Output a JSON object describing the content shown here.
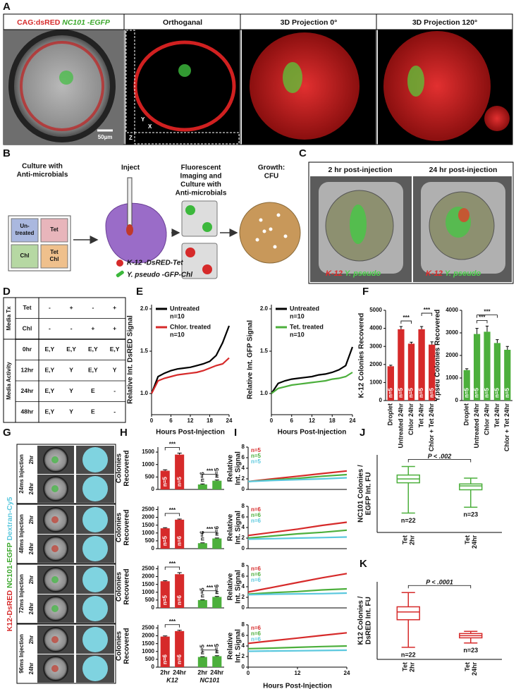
{
  "panel_labels": [
    "A",
    "B",
    "C",
    "D",
    "E",
    "F",
    "G",
    "H",
    "I",
    "J",
    "K"
  ],
  "panel_a": {
    "title_red": "CAG:dsRED",
    "title_green": "NC101 -EGFP",
    "titles": [
      "Orthoganal",
      "3D Projection 0°",
      "3D Projection 120°"
    ],
    "scale_bar": "50µm",
    "axes": [
      "Y",
      "X",
      "Z"
    ]
  },
  "panel_b": {
    "steps": [
      [
        "Culture with",
        "Anti-microbials"
      ],
      [
        "Inject"
      ],
      [
        "Fluorescent",
        "Imaging and",
        "Culture with",
        "Anti-microbials"
      ],
      [
        "Growth:",
        "CFU"
      ]
    ],
    "boxes": [
      [
        "Un-",
        "treated"
      ],
      [
        "Tet"
      ],
      [
        "Chl"
      ],
      [
        "Tet",
        "Chl"
      ]
    ],
    "legend": [
      "K-12 -DsRED-Tet",
      "Y. pseudo -GFP-Chl"
    ]
  },
  "panel_c": {
    "headers": [
      "2 hr post-injection",
      "24 hr post-injection"
    ],
    "overlay_red": "K-12",
    "overlay_green": "Y. pseudo"
  },
  "panel_d": {
    "group_labels": [
      "Media Tx",
      "Media Activity"
    ],
    "rows": [
      [
        "Tet",
        "-",
        "+",
        "-",
        "+"
      ],
      [
        "Chl",
        "-",
        "-",
        "+",
        "+"
      ],
      [
        "0hr",
        "E,Y",
        "E,Y",
        "E,Y",
        "E,Y"
      ],
      [
        "12hr",
        "E,Y",
        "Y",
        "E,Y",
        "Y"
      ],
      [
        "24hr",
        "E,Y",
        "Y",
        "E",
        "-"
      ],
      [
        "48hr",
        "E,Y",
        "Y",
        "E",
        "-"
      ]
    ]
  },
  "panel_g": {
    "stain_labels": [
      "K12-DsRED",
      "NC101-EGFP",
      "Dextran-Cy5"
    ],
    "injections": [
      "24ms Injection",
      "48ms Injection",
      "72ms Injection",
      "96ms Injection"
    ],
    "times": [
      "2hr",
      "24hr"
    ]
  },
  "chart_data": [
    {
      "type": "line",
      "y_label": [
        "Relative Int. DsRED Signal"
      ],
      "x_label": "Hours Post-Injection",
      "x": [
        0,
        2,
        4,
        6,
        8,
        10,
        12,
        14,
        16,
        18,
        20,
        22,
        24
      ],
      "xlim": [
        0,
        24
      ],
      "xticks": [
        0,
        6,
        12,
        18,
        24
      ],
      "ylim": [
        0.75,
        2.05
      ],
      "yticks": [
        {
          "value": 1,
          "label": "1.0"
        },
        1.5,
        {
          "value": 2,
          "label": "2.0"
        }
      ],
      "series": [
        {
          "name": "Untreated",
          "n_label": "n=10",
          "color": "#000000",
          "values": [
            1.0,
            1.2,
            1.24,
            1.27,
            1.29,
            1.3,
            1.31,
            1.33,
            1.35,
            1.38,
            1.45,
            1.6,
            1.8
          ]
        },
        {
          "name": "Chlor. treated",
          "n_label": "n=10",
          "color": "#d62a2a",
          "values": [
            1.0,
            1.15,
            1.18,
            1.2,
            1.22,
            1.23,
            1.24,
            1.25,
            1.27,
            1.3,
            1.33,
            1.35,
            1.42
          ]
        }
      ]
    },
    {
      "type": "line",
      "y_label": [
        "Relative Int. GFP Signal"
      ],
      "x_label": "Hours Post-Injection",
      "x": [
        0,
        2,
        4,
        6,
        8,
        10,
        12,
        14,
        16,
        18,
        20,
        22,
        24
      ],
      "xlim": [
        0,
        24
      ],
      "xticks": [
        0,
        6,
        12,
        18,
        24
      ],
      "ylim": [
        0.75,
        2.05
      ],
      "yticks": [
        {
          "value": 1,
          "label": "1.0"
        },
        1.5,
        {
          "value": 2,
          "label": "2.0"
        }
      ],
      "series": [
        {
          "name": "Untreated",
          "n_label": "n=10",
          "color": "#000000",
          "values": [
            1.0,
            1.12,
            1.15,
            1.17,
            1.18,
            1.19,
            1.2,
            1.22,
            1.23,
            1.25,
            1.28,
            1.33,
            1.55
          ]
        },
        {
          "name": "Tet. treated",
          "n_label": "n=10",
          "color": "#4caf3c",
          "values": [
            1.0,
            1.06,
            1.08,
            1.1,
            1.11,
            1.12,
            1.13,
            1.14,
            1.15,
            1.17,
            1.18,
            1.2,
            1.25
          ]
        }
      ]
    },
    {
      "type": "bar",
      "y_label": [
        "K-12 Colonies Recovered"
      ],
      "categories": [
        "Droplet",
        "Untreated 24hr",
        "Chlor 24hr",
        "Tet 24hr",
        "Chlor + Tet 24hr"
      ],
      "values": [
        1900,
        3950,
        3150,
        3950,
        3100
      ],
      "errors": [
        60,
        150,
        80,
        150,
        150
      ],
      "n_labels": [
        "n=5",
        "n=5",
        "n=5",
        "n=5",
        "n=5"
      ],
      "color": "#d62a2a",
      "ylim": [
        0,
        5000
      ],
      "yticks": [
        0,
        1000,
        2000,
        3000,
        4000,
        5000
      ],
      "significance": [
        {
          "label": "***",
          "pair": [
            "Untreated 24hr",
            "Chlor 24hr"
          ]
        },
        {
          "label": "***",
          "pair": [
            "Tet 24hr",
            "Chlor + Tet 24hr"
          ]
        }
      ]
    },
    {
      "type": "bar",
      "y_label": [
        "Y.pseu Colonies Recovered"
      ],
      "categories": [
        "Droplet",
        "Untreated 24hr",
        "Chlor 24hr",
        "Tet 24hr",
        "Chlor + Tet 24hr"
      ],
      "values": [
        1350,
        2950,
        3050,
        2550,
        2250
      ],
      "errors": [
        60,
        250,
        250,
        150,
        150
      ],
      "n_labels": [
        "n=5",
        "n=5",
        "n=5",
        "n=5",
        "n=5"
      ],
      "color": "#4caf3c",
      "ylim": [
        0,
        4000
      ],
      "yticks": [
        0,
        1000,
        2000,
        3000,
        4000
      ],
      "significance": [
        {
          "label": "***",
          "pair": [
            "Untreated 24hr",
            "Chlor 24hr"
          ]
        },
        {
          "label": "***",
          "pair": [
            "Untreated 24hr",
            "Tet 24hr"
          ]
        }
      ]
    },
    {
      "type": "bar",
      "y_label": [
        "Colonies",
        "Recovered"
      ],
      "ylim": [
        0,
        1700
      ],
      "yticks": [
        0,
        500,
        1000,
        1500
      ],
      "groups": [
        {
          "color": "#d62a2a",
          "values": [
            750,
            1400
          ],
          "errors": [
            40,
            60
          ],
          "n_labels": [
            "n=5",
            "n=5"
          ],
          "significance": "***"
        },
        {
          "color": "#4caf3c",
          "values": [
            200,
            350
          ],
          "errors": [
            20,
            30
          ],
          "n_labels": [
            "n=6",
            "n=5"
          ],
          "significance": "***"
        }
      ]
    },
    {
      "type": "bar",
      "y_label": [
        "Colonies",
        "Recovered"
      ],
      "ylim": [
        0,
        2700
      ],
      "yticks": [
        0,
        500,
        1000,
        1500,
        2000,
        2500
      ],
      "groups": [
        {
          "color": "#d62a2a",
          "values": [
            1300,
            1850
          ],
          "errors": [
            40,
            40
          ],
          "n_labels": [
            "n=5",
            "n=6"
          ],
          "significance": "***"
        },
        {
          "color": "#4caf3c",
          "values": [
            350,
            650
          ],
          "errors": [
            20,
            30
          ],
          "n_labels": [
            "n=6",
            "n=6"
          ],
          "significance": "***"
        }
      ]
    },
    {
      "type": "bar",
      "y_label": [
        "Colonies",
        "Recovered"
      ],
      "ylim": [
        0,
        2700
      ],
      "yticks": [
        0,
        500,
        1000,
        1500,
        2000,
        2500
      ],
      "groups": [
        {
          "color": "#d62a2a",
          "values": [
            1700,
            2150
          ],
          "errors": [
            40,
            100
          ],
          "n_labels": [
            "n=5",
            "n=6"
          ],
          "significance": "***"
        },
        {
          "color": "#4caf3c",
          "values": [
            500,
            700
          ],
          "errors": [
            20,
            30
          ],
          "n_labels": [
            "n=5",
            "n=6"
          ],
          "significance": "***"
        }
      ]
    },
    {
      "type": "bar",
      "y_label": [
        "Colonies",
        "Recovered"
      ],
      "ylim": [
        0,
        2700
      ],
      "yticks": [
        0,
        500,
        1000,
        1500,
        2000,
        2500
      ],
      "groups": [
        {
          "name": "K12",
          "categories": [
            "2hr",
            "24hr"
          ],
          "color": "#d62a2a",
          "values": [
            1950,
            2300
          ],
          "errors": [
            40,
            50
          ],
          "n_labels": [
            "n=6",
            "n=6"
          ],
          "significance": "***"
        },
        {
          "name": "NC101",
          "categories": [
            "2hr",
            "24hr"
          ],
          "color": "#4caf3c",
          "values": [
            650,
            700
          ],
          "errors": [
            20,
            30
          ],
          "n_labels": [
            "n=5",
            "n=5"
          ],
          "significance": "***"
        }
      ]
    },
    {
      "type": "line",
      "y_label": [
        "Relative",
        "Int. Signal"
      ],
      "x": [
        0,
        6,
        12,
        18,
        24
      ],
      "xlim": [
        0,
        24
      ],
      "ylim": [
        0,
        8
      ],
      "yticks": [
        0,
        2,
        4,
        6,
        8
      ],
      "series": [
        {
          "name": "n=5",
          "color": "#d62a2a",
          "values": [
            1.5,
            2.0,
            2.5,
            3.0,
            3.5
          ]
        },
        {
          "name": "n=5",
          "color": "#4caf3c",
          "values": [
            1.5,
            1.8,
            2.1,
            2.5,
            2.8
          ]
        },
        {
          "name": "n=5",
          "color": "#5bc8de",
          "values": [
            1.5,
            1.7,
            1.85,
            2.0,
            2.2
          ]
        }
      ]
    },
    {
      "type": "line",
      "y_label": [
        "Relative",
        "Int. Signal"
      ],
      "x": [
        0,
        6,
        12,
        18,
        24
      ],
      "xlim": [
        0,
        24
      ],
      "ylim": [
        0,
        8
      ],
      "yticks": [
        0,
        2,
        4,
        6,
        8
      ],
      "series": [
        {
          "name": "n=6",
          "color": "#d62a2a",
          "values": [
            2.5,
            3.1,
            3.7,
            4.4,
            5.0
          ]
        },
        {
          "name": "n=6",
          "color": "#4caf3c",
          "values": [
            2.0,
            2.4,
            2.8,
            3.1,
            3.5
          ]
        },
        {
          "name": "n=6",
          "color": "#5bc8de",
          "values": [
            1.8,
            1.9,
            2.0,
            2.1,
            2.2
          ]
        }
      ]
    },
    {
      "type": "line",
      "y_label": [
        "Relative",
        "Int. Signal"
      ],
      "x": [
        0,
        6,
        12,
        18,
        24
      ],
      "xlim": [
        0,
        24
      ],
      "ylim": [
        0,
        8
      ],
      "yticks": [
        0,
        2,
        4,
        6,
        8
      ],
      "series": [
        {
          "name": "n=6",
          "color": "#d62a2a",
          "values": [
            3.0,
            3.9,
            4.8,
            5.7,
            6.5
          ]
        },
        {
          "name": "n=6",
          "color": "#4caf3c",
          "values": [
            2.6,
            2.9,
            3.1,
            3.4,
            3.6
          ]
        },
        {
          "name": "n=6",
          "color": "#5bc8de",
          "values": [
            2.5,
            2.6,
            2.65,
            2.7,
            2.8
          ]
        }
      ]
    },
    {
      "type": "line",
      "y_label": [
        "Relative",
        "Int. Signal"
      ],
      "x_label": "Hours Post-Injection",
      "x": [
        0,
        6,
        12,
        18,
        24
      ],
      "xlim": [
        0,
        24
      ],
      "xticks": [
        0,
        12,
        24
      ],
      "ylim": [
        0,
        8
      ],
      "yticks": [
        0,
        2,
        4,
        6,
        8
      ],
      "series": [
        {
          "name": "n=6",
          "color": "#d62a2a",
          "values": [
            4.5,
            5.0,
            5.5,
            6.0,
            6.5
          ]
        },
        {
          "name": "n=6",
          "color": "#4caf3c",
          "values": [
            3.5,
            3.6,
            3.75,
            3.9,
            4.0
          ]
        },
        {
          "name": "n=6",
          "color": "#5bc8de",
          "values": [
            3.0,
            3.05,
            3.1,
            3.15,
            3.2
          ]
        }
      ]
    },
    {
      "type": "box",
      "y_label": [
        "NC101 Colonies /",
        "EGFP Int. FU"
      ],
      "categories": [
        [
          "Tet",
          "2hr"
        ],
        [
          "Tet",
          "24hr"
        ]
      ],
      "color": "#4caf3c",
      "ylim": [
        0.5,
        2.5
      ],
      "boxes": [
        {
          "min": 1.0,
          "q1": 1.78,
          "median": 1.88,
          "q3": 1.98,
          "max": 2.2
        },
        {
          "min": 1.15,
          "q1": 1.6,
          "median": 1.7,
          "q3": 1.75,
          "max": 1.9
        }
      ],
      "n_labels": [
        "n=22",
        "n=23"
      ],
      "annotation": "P < .002"
    },
    {
      "type": "box",
      "y_label": [
        "K12 Colonies /",
        "DsRED Int. FU"
      ],
      "categories": [
        [
          "Tet",
          "2hr"
        ],
        [
          "Tet",
          "24hr"
        ]
      ],
      "color": "#d62a2a",
      "ylim": [
        500,
        2300
      ],
      "boxes": [
        {
          "min": 780,
          "q1": 1420,
          "median": 1600,
          "q3": 1720,
          "max": 2050
        },
        {
          "min": 880,
          "q1": 1000,
          "median": 1050,
          "q3": 1100,
          "max": 1150
        }
      ],
      "n_labels": [
        "n=22",
        "n=23"
      ],
      "annotation": "P < .0001"
    }
  ]
}
